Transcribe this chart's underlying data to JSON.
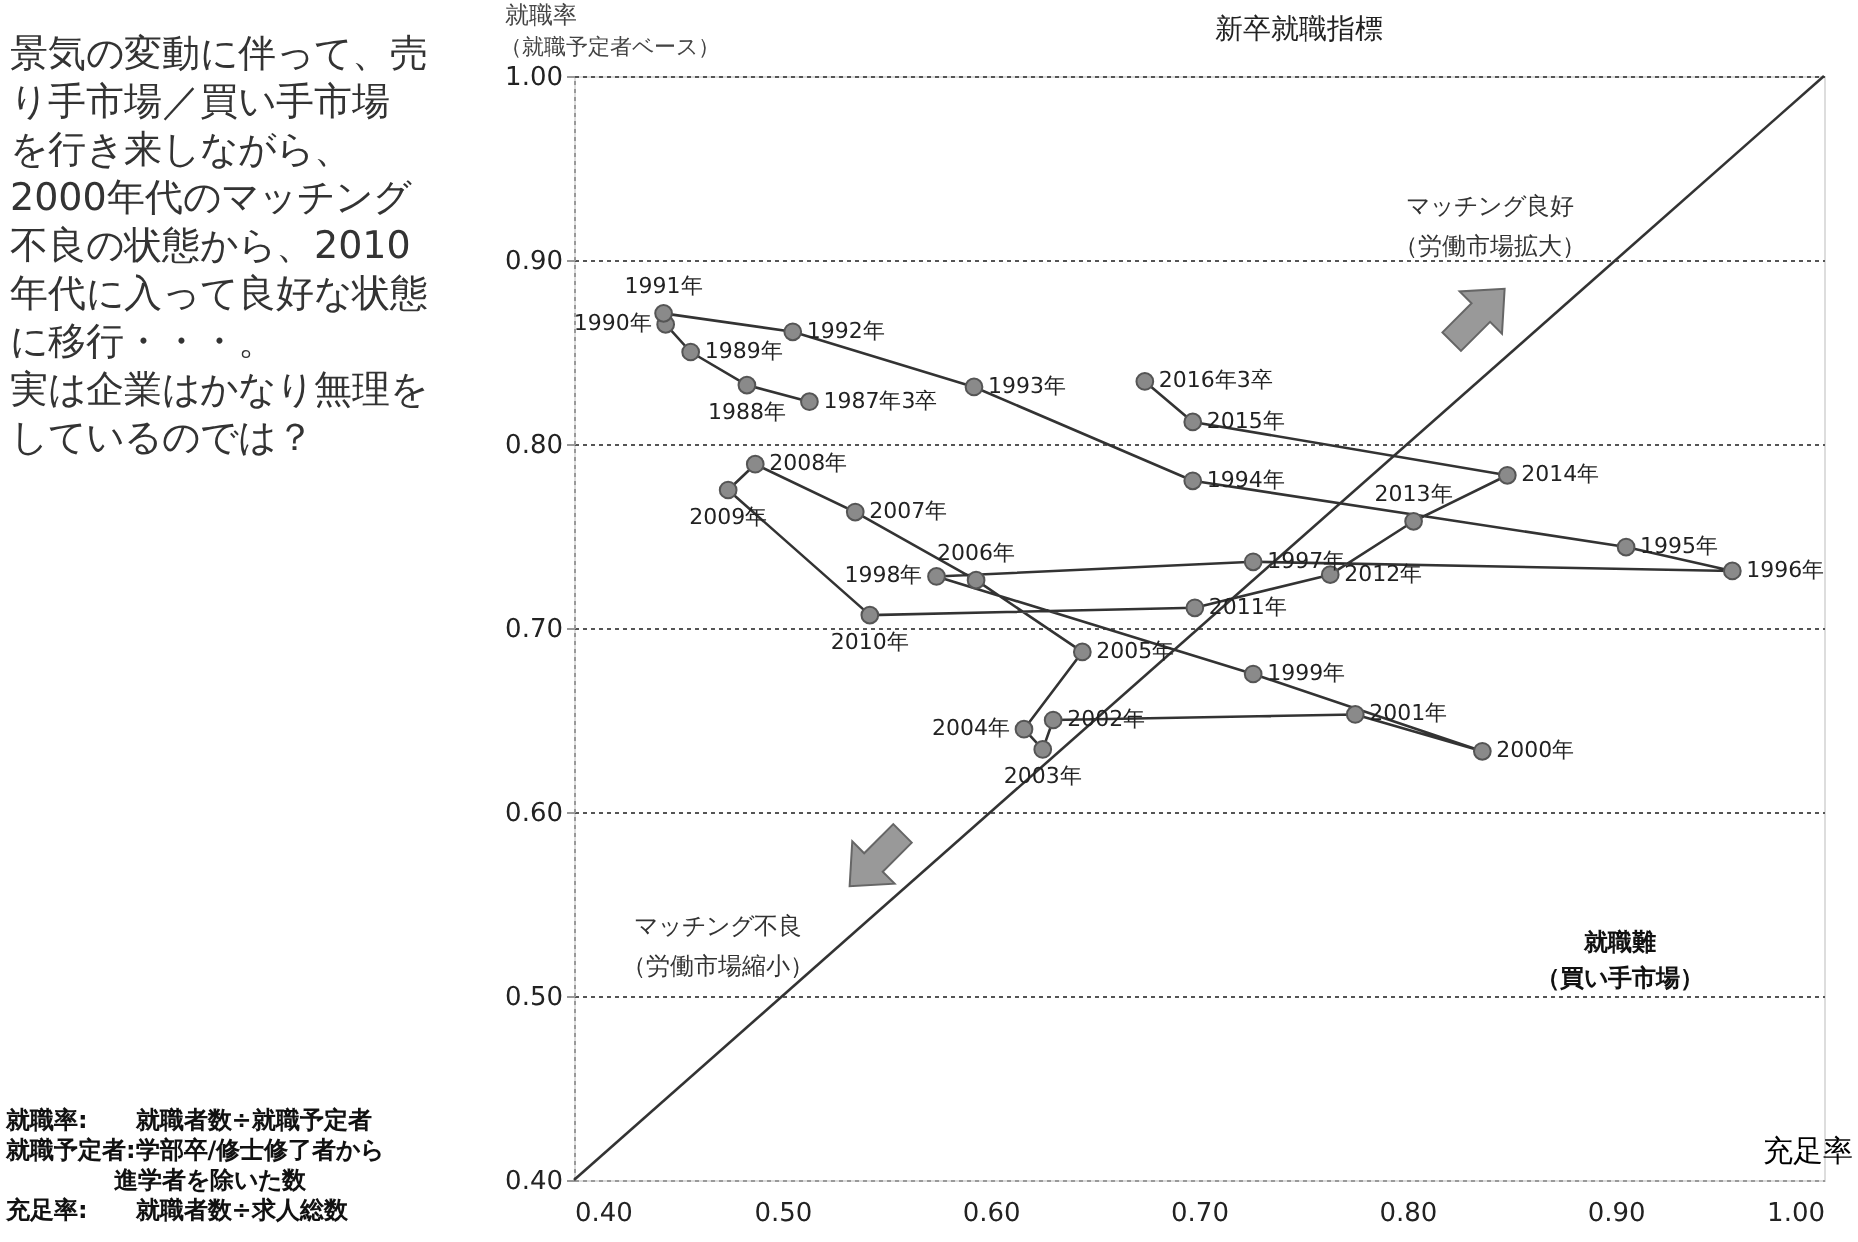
{
  "chart_data": {
    "type": "line",
    "title": "新卒就職指標",
    "xlabel": "充足率",
    "ylabel": "就職率",
    "xlim": [
      0.4,
      1.0
    ],
    "ylim": [
      0.4,
      1.0
    ],
    "xticks": [
      {
        "value": 0.4,
        "label": "0.40"
      },
      {
        "value": 0.5,
        "label": "0.50"
      },
      {
        "value": 0.6,
        "label": "0.60"
      },
      {
        "value": 0.7,
        "label": "0.70"
      },
      {
        "value": 0.8,
        "label": "0.80"
      },
      {
        "value": 0.9,
        "label": "0.90"
      },
      {
        "value": 1.0,
        "label": "1.00"
      }
    ],
    "yticks": [
      {
        "value": 0.4,
        "label": "0.40"
      },
      {
        "value": 0.5,
        "label": "0.50"
      },
      {
        "value": 0.6,
        "label": "0.60"
      },
      {
        "value": 0.7,
        "label": "0.70"
      },
      {
        "value": 0.8,
        "label": "0.80"
      },
      {
        "value": 0.9,
        "label": "0.90"
      },
      {
        "value": 1.0,
        "label": "1.00"
      }
    ],
    "grid": "y",
    "line_style": "solid",
    "series": [
      {
        "marker": "circle",
        "color": "#333333",
        "x": [
          0.513,
          0.483,
          0.456,
          0.444,
          0.443,
          0.505,
          0.592,
          0.697,
          0.905,
          0.956,
          0.726,
          0.574,
          0.726,
          0.836,
          0.775,
          0.63,
          0.625,
          0.616,
          0.644,
          0.593,
          0.535,
          0.487,
          0.474,
          0.542,
          0.698,
          0.763,
          0.803,
          0.848,
          0.697,
          0.674
        ],
        "values": [
          0.823,
          0.832,
          0.85,
          0.865,
          0.871,
          0.861,
          0.831,
          0.78,
          0.744,
          0.731,
          0.736,
          0.728,
          0.675,
          0.633,
          0.653,
          0.65,
          0.634,
          0.645,
          0.687,
          0.726,
          0.763,
          0.789,
          0.775,
          0.707,
          0.711,
          0.729,
          0.758,
          0.783,
          0.812,
          0.834
        ]
      },
      {
        "marker": "none",
        "color": "#333333",
        "x": [
          0.4,
          1.0
        ],
        "values": [
          0.4,
          1.0
        ]
      }
    ],
    "annotations": [
      {
        "text": "1987年3卒",
        "x": 0.513,
        "y": 0.823
      },
      {
        "text": "1988年",
        "x": 0.483,
        "y": 0.832
      },
      {
        "text": "1989年",
        "x": 0.456,
        "y": 0.85
      },
      {
        "text": "1990年",
        "x": 0.444,
        "y": 0.865
      },
      {
        "text": "1991年",
        "x": 0.443,
        "y": 0.871
      },
      {
        "text": "1992年",
        "x": 0.505,
        "y": 0.861
      },
      {
        "text": "1993年",
        "x": 0.592,
        "y": 0.831
      },
      {
        "text": "1994年",
        "x": 0.697,
        "y": 0.78
      },
      {
        "text": "1995年",
        "x": 0.905,
        "y": 0.744
      },
      {
        "text": "1996年",
        "x": 0.956,
        "y": 0.731
      },
      {
        "text": "1997年",
        "x": 0.726,
        "y": 0.736
      },
      {
        "text": "1998年",
        "x": 0.574,
        "y": 0.728
      },
      {
        "text": "1999年",
        "x": 0.726,
        "y": 0.675
      },
      {
        "text": "2000年",
        "x": 0.836,
        "y": 0.633
      },
      {
        "text": "2001年",
        "x": 0.775,
        "y": 0.653
      },
      {
        "text": "2002年",
        "x": 0.63,
        "y": 0.65
      },
      {
        "text": "2003年",
        "x": 0.625,
        "y": 0.634
      },
      {
        "text": "2004年",
        "x": 0.616,
        "y": 0.645
      },
      {
        "text": "2005年",
        "x": 0.644,
        "y": 0.687
      },
      {
        "text": "2006年",
        "x": 0.593,
        "y": 0.726
      },
      {
        "text": "2007年",
        "x": 0.535,
        "y": 0.763
      },
      {
        "text": "2008年",
        "x": 0.487,
        "y": 0.789
      },
      {
        "text": "2009年",
        "x": 0.474,
        "y": 0.775
      },
      {
        "text": "2010年",
        "x": 0.542,
        "y": 0.707
      },
      {
        "text": "2011年",
        "x": 0.698,
        "y": 0.711
      },
      {
        "text": "2012年",
        "x": 0.763,
        "y": 0.729
      },
      {
        "text": "2013年",
        "x": 0.803,
        "y": 0.758
      },
      {
        "text": "2014年",
        "x": 0.848,
        "y": 0.783
      },
      {
        "text": "2015年",
        "x": 0.697,
        "y": 0.812
      },
      {
        "text": "2016年3卒",
        "x": 0.674,
        "y": 0.834
      },
      "（就職予定者ベース）",
      "景気の変動に伴って、売り手市場／買い手市場を行き来しながら、2000年代のマッチング不良の状態から、2010年代に入って良好な状態に移行・・・。実は企業はかなり無理をしているのでは？",
      "就職率:　　就職者数÷就職予定者",
      "就職予定者:学部卒/修士修了者から",
      "進学者を除いた数",
      "充足率:　　就職者数÷求人総数",
      "マッチング良好",
      "（労働市場拡大）",
      "マッチング不良",
      "（労働市場縮小）",
      "就職難",
      "（買い手市場）"
    ]
  }
}
